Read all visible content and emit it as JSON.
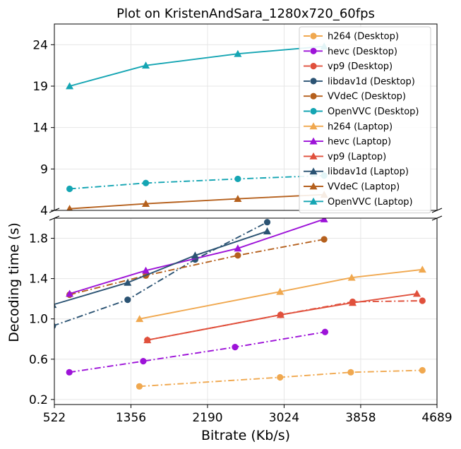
{
  "chart_data": {
    "type": "line",
    "title": "Plot on KristenAndSara_1280x720_60fps",
    "xlabel": "Bitrate (Kb/s)",
    "ylabel": "Decoding time (s)",
    "xlim": [
      522,
      4689
    ],
    "x_ticks": [
      522,
      1356,
      2190,
      3024,
      3858,
      4689
    ],
    "broken_y_axis": true,
    "upper_ylim": [
      4,
      26.5
    ],
    "upper_y_ticks": [
      4,
      9,
      14,
      19,
      24
    ],
    "lower_ylim": [
      0.15,
      2.0
    ],
    "lower_y_ticks": [
      0.2,
      0.6,
      1.0,
      1.4,
      1.8
    ],
    "grid": true,
    "legend_position": "upper-right",
    "series": [
      {
        "name": "h264 (Desktop)",
        "color": "#f0a84f",
        "marker": "circle",
        "dash": "dashdot",
        "x": [
          1448,
          2980,
          3750,
          4530
        ],
        "y": [
          0.33,
          0.42,
          0.47,
          0.49
        ]
      },
      {
        "name": "hevc (Desktop)",
        "color": "#9d13d8",
        "marker": "circle",
        "dash": "dashdot",
        "x": [
          685,
          1490,
          2490,
          3470
        ],
        "y": [
          0.47,
          0.58,
          0.72,
          0.87
        ]
      },
      {
        "name": "vp9 (Desktop)",
        "color": "#e0503c",
        "marker": "circle",
        "dash": "dashdot",
        "x": [
          1535,
          2985,
          3770,
          4530
        ],
        "y": [
          0.79,
          1.04,
          1.17,
          1.18
        ]
      },
      {
        "name": "libdav1d (Desktop)",
        "color": "#2b5373",
        "marker": "circle",
        "dash": "dashdot",
        "x": [
          505,
          1320,
          2055,
          2840
        ],
        "y": [
          0.93,
          1.19,
          1.59,
          1.96
        ]
      },
      {
        "name": "VVdeC (Desktop)",
        "color": "#b5601d",
        "marker": "circle",
        "dash": "dashdot",
        "x": [
          688,
          1518,
          2520,
          3460
        ],
        "y": [
          1.24,
          1.43,
          1.63,
          1.79
        ]
      },
      {
        "name": "OpenVVC (Desktop)",
        "color": "#15a5b3",
        "marker": "circle",
        "dash": "dashdot",
        "x": [
          688,
          1518,
          2520,
          3460
        ],
        "y": [
          6.6,
          7.3,
          7.8,
          8.2
        ]
      },
      {
        "name": "h264 (Laptop)",
        "color": "#f0a84f",
        "marker": "triangle",
        "dash": "solid",
        "x": [
          1450,
          2980,
          3760,
          4530
        ],
        "y": [
          1.0,
          1.27,
          1.41,
          1.49
        ]
      },
      {
        "name": "hevc (Laptop)",
        "color": "#9d13d8",
        "marker": "triangle",
        "dash": "solid",
        "x": [
          688,
          1518,
          2520,
          3460
        ],
        "y": [
          1.25,
          1.48,
          1.7,
          1.99
        ]
      },
      {
        "name": "vp9 (Laptop)",
        "color": "#e0503c",
        "marker": "triangle",
        "dash": "solid",
        "x": [
          1535,
          2985,
          3770,
          4470
        ],
        "y": [
          0.79,
          1.04,
          1.16,
          1.25
        ]
      },
      {
        "name": "libdav1d (Laptop)",
        "color": "#2b5373",
        "marker": "triangle",
        "dash": "solid",
        "x": [
          505,
          1320,
          2055,
          2840
        ],
        "y": [
          1.14,
          1.36,
          1.63,
          1.87
        ]
      },
      {
        "name": "VVdeC (Laptop)",
        "color": "#b5601d",
        "marker": "triangle",
        "dash": "solid",
        "x": [
          688,
          1518,
          2520,
          3460
        ],
        "y": [
          4.2,
          4.8,
          5.4,
          5.9
        ]
      },
      {
        "name": "OpenVVC (Laptop)",
        "color": "#15a5b3",
        "marker": "triangle",
        "dash": "solid",
        "x": [
          688,
          1518,
          2520,
          3460
        ],
        "y": [
          19.0,
          21.5,
          22.9,
          23.8
        ]
      }
    ]
  }
}
